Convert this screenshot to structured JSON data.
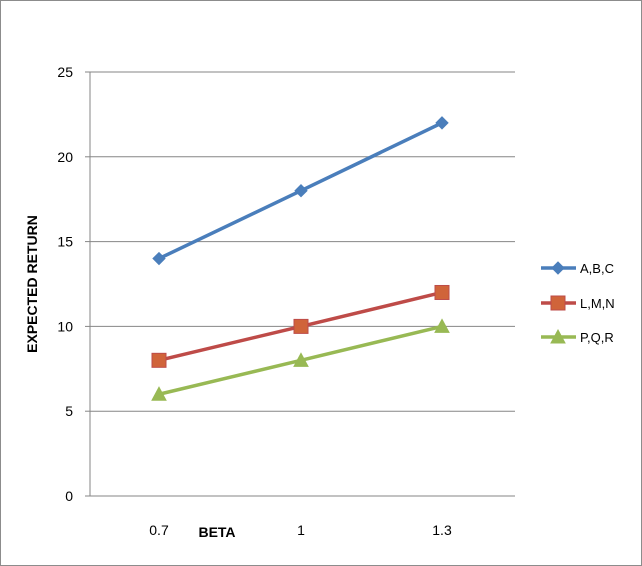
{
  "chart_data": {
    "type": "line",
    "categories": [
      "0.7",
      "1",
      "1.3"
    ],
    "xlabel": "BETA",
    "ylabel": "EXPECTED RETURN",
    "ylim": [
      0,
      25
    ],
    "yticks": [
      "0",
      "5",
      "10",
      "15",
      "20",
      "25"
    ],
    "grid": true,
    "legend_position": "right",
    "series": [
      {
        "name": "A,B,C",
        "values": [
          14,
          18,
          22
        ],
        "color": "#4a7ebb",
        "marker": "diamond"
      },
      {
        "name": "L,M,N",
        "values": [
          8,
          10,
          12
        ],
        "color": "#be4b48",
        "marker": "square"
      },
      {
        "name": "P,Q,R",
        "values": [
          6,
          8,
          10
        ],
        "color": "#98b954",
        "marker": "triangle"
      }
    ]
  }
}
